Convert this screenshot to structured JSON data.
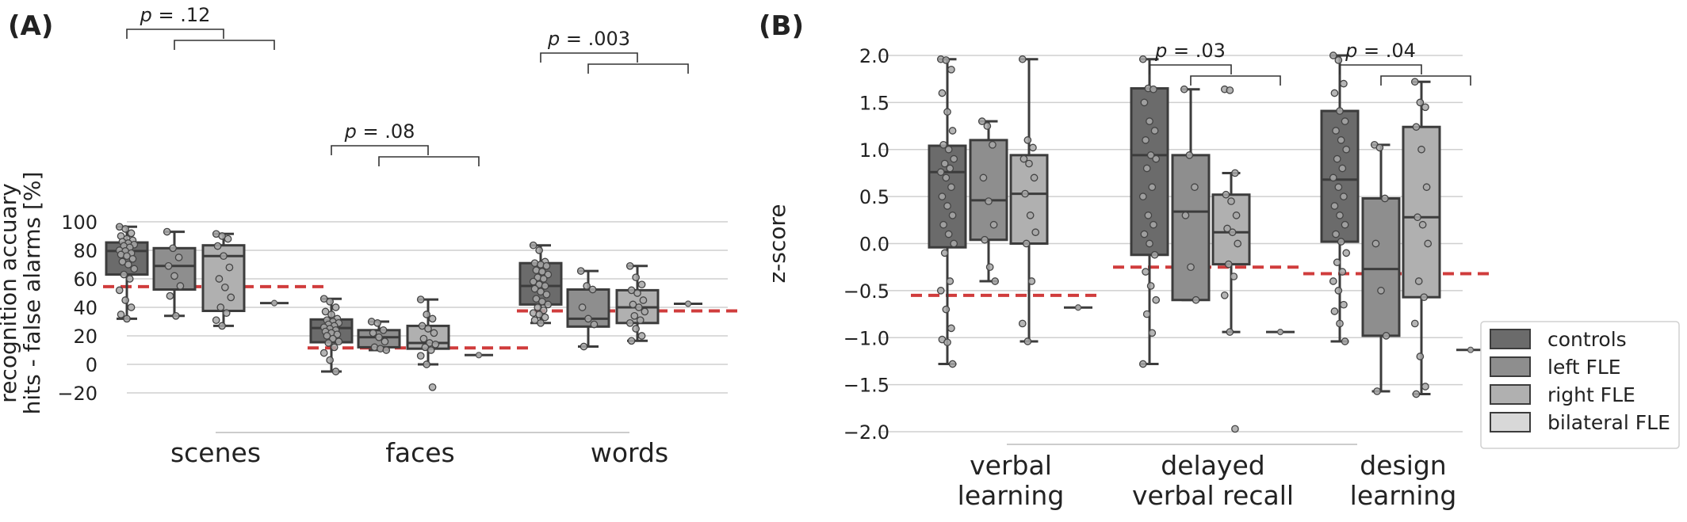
{
  "chart_data": [
    {
      "panel": "(A)",
      "type": "box",
      "ylabel_lines": [
        "recognition accuary",
        "hits - false alarms [%]"
      ],
      "ylim": [
        -22,
        103
      ],
      "yticks": [
        100,
        80,
        60,
        40,
        20,
        0,
        -20
      ],
      "ytick_labels": [
        "100",
        "80",
        "60",
        "40",
        "20",
        "0",
        "−20"
      ],
      "grid": true,
      "categories": [
        "scenes",
        "faces",
        "words"
      ],
      "series": [
        {
          "name": "controls",
          "color": "#6b6b6b",
          "boxes": [
            {
              "q1": 63,
              "median": 79.5,
              "q3": 85.5,
              "whisker_low": 32,
              "whisker_high": 96.5,
              "points": [
                96.5,
                95,
                92,
                90,
                88,
                87,
                86,
                85,
                84,
                83,
                82,
                80,
                79.5,
                78,
                77,
                76,
                74,
                72,
                70,
                67,
                63,
                60,
                52,
                45,
                40,
                35,
                32
              ]
            },
            {
              "q1": 15.5,
              "median": 25.5,
              "q3": 31.5,
              "whisker_low": -5,
              "whisker_high": 46,
              "points": [
                46,
                44,
                40,
                37,
                35,
                32,
                31,
                30,
                29,
                28,
                27,
                26,
                25,
                24,
                23,
                22,
                21,
                20,
                18,
                16,
                15,
                12,
                8,
                3,
                -5
              ]
            },
            {
              "q1": 42,
              "median": 55,
              "q3": 71,
              "whisker_low": 29,
              "whisker_high": 83.5,
              "points": [
                83.5,
                80,
                72,
                71,
                70,
                69,
                66,
                65,
                63,
                61,
                60,
                58,
                56,
                55,
                53,
                51,
                49,
                46,
                44,
                42,
                40,
                38,
                36,
                35,
                33,
                31,
                29
              ]
            }
          ]
        },
        {
          "name": "left FLE",
          "color": "#8e8e8e",
          "boxes": [
            {
              "q1": 52.5,
              "median": 69,
              "q3": 81.5,
              "whisker_low": 34,
              "whisker_high": 93,
              "points": [
                93,
                81.5,
                75,
                69,
                62,
                55,
                48,
                34
              ]
            },
            {
              "q1": 12,
              "median": 19,
              "q3": 24,
              "whisker_low": 10,
              "whisker_high": 30,
              "points": [
                30,
                29,
                24,
                22,
                19,
                16,
                12,
                11,
                10
              ]
            },
            {
              "q1": 26.5,
              "median": 32,
              "q3": 52.5,
              "whisker_low": 12.5,
              "whisker_high": 65.5,
              "points": [
                65.5,
                55,
                52.5,
                40,
                32,
                28,
                12.5
              ]
            }
          ]
        },
        {
          "name": "right FLE",
          "color": "#b0b0b0",
          "boxes": [
            {
              "q1": 37.5,
              "median": 76,
              "q3": 83.5,
              "whisker_low": 27,
              "whisker_high": 91.5,
              "points": [
                91.5,
                90,
                88,
                83,
                76,
                68,
                60,
                54,
                47,
                40,
                36,
                31,
                27
              ]
            },
            {
              "q1": 11,
              "median": 15,
              "q3": 27,
              "whisker_low": 0,
              "whisker_high": 45.5,
              "points": [
                45.5,
                35,
                32,
                27,
                25,
                22,
                18,
                15,
                14,
                12,
                10,
                6,
                0,
                -16
              ]
            },
            {
              "q1": 29,
              "median": 40,
              "q3": 52,
              "whisker_low": 16.5,
              "whisker_high": 69,
              "points": [
                69,
                61,
                56,
                52,
                50,
                45,
                42,
                40,
                37,
                34,
                31,
                29,
                25,
                20,
                16.5
              ]
            }
          ]
        },
        {
          "name": "bilateral FLE",
          "color": "#d8d8d8",
          "boxes": [
            {
              "value": 43
            },
            {
              "value": 6.5
            },
            {
              "value": 42.5
            }
          ]
        }
      ],
      "reference_lines": [
        {
          "category": "scenes",
          "y": 54.5
        },
        {
          "category": "faces",
          "y": 11.5
        },
        {
          "category": "words",
          "y": 37.5
        }
      ],
      "annotations": [
        {
          "category": "scenes",
          "text": "p = .12"
        },
        {
          "category": "faces",
          "text": "p = .08"
        },
        {
          "category": "words",
          "text": "p = .003"
        }
      ]
    },
    {
      "panel": "(B)",
      "type": "box",
      "ylabel_lines": [
        "z-score"
      ],
      "ylim": [
        -2.1,
        2.1
      ],
      "yticks": [
        2.0,
        1.5,
        1.0,
        0.5,
        0.0,
        -0.5,
        -1.0,
        -1.5,
        -2.0
      ],
      "ytick_labels": [
        "2.0",
        "1.5",
        "1.0",
        "0.5",
        "0.0",
        "−0.5",
        "−1.0",
        "−1.5",
        "−2.0"
      ],
      "grid": true,
      "categories": [
        [
          "verbal",
          "learning"
        ],
        [
          "delayed",
          "verbal recall"
        ],
        [
          "design",
          "learning"
        ]
      ],
      "series": [
        {
          "name": "controls",
          "color": "#6b6b6b",
          "boxes": [
            {
              "q1": -0.04,
              "median": 0.76,
              "q3": 1.04,
              "whisker_low": -1.28,
              "whisker_high": 1.96,
              "points": [
                1.96,
                1.95,
                1.85,
                1.6,
                1.4,
                1.2,
                1.05,
                1.0,
                0.9,
                0.85,
                0.8,
                0.76,
                0.7,
                0.6,
                0.5,
                0.4,
                0.3,
                0.2,
                0.1,
                0.0,
                -0.1,
                -0.4,
                -0.5,
                -0.7,
                -0.9,
                -1.02,
                -1.05,
                -1.28
              ]
            },
            {
              "q1": -0.12,
              "median": 0.94,
              "q3": 1.65,
              "whisker_low": -1.28,
              "whisker_high": 1.96,
              "points": [
                1.96,
                1.65,
                1.64,
                1.5,
                1.3,
                1.2,
                1.1,
                0.94,
                0.9,
                0.8,
                0.6,
                0.5,
                0.3,
                0.2,
                0.1,
                0.0,
                -0.12,
                -0.3,
                -0.45,
                -0.6,
                -0.75,
                -0.95,
                -1.28
              ]
            },
            {
              "q1": 0.02,
              "median": 0.68,
              "q3": 1.41,
              "whisker_low": -1.04,
              "whisker_high": 2.0,
              "points": [
                2.0,
                1.95,
                1.7,
                1.6,
                1.41,
                1.3,
                1.2,
                1.1,
                1.0,
                0.9,
                0.8,
                0.7,
                0.6,
                0.5,
                0.4,
                0.3,
                0.2,
                0.1,
                0.02,
                -0.1,
                -0.2,
                -0.3,
                -0.4,
                -0.5,
                -0.65,
                -0.72,
                -0.85,
                -1.04
              ]
            }
          ]
        },
        {
          "name": "left FLE",
          "color": "#8e8e8e",
          "boxes": [
            {
              "q1": 0.04,
              "median": 0.46,
              "q3": 1.1,
              "whisker_low": -0.4,
              "whisker_high": 1.3,
              "points": [
                1.3,
                1.25,
                1.05,
                0.7,
                0.45,
                0.2,
                0.04,
                -0.25,
                -0.4
              ]
            },
            {
              "q1": -0.6,
              "median": 0.34,
              "q3": 0.94,
              "whisker_low": -0.6,
              "whisker_high": 1.64,
              "points": [
                1.64,
                0.94,
                0.6,
                0.3,
                -0.25,
                -0.6
              ]
            },
            {
              "q1": -0.98,
              "median": -0.27,
              "q3": 0.48,
              "whisker_low": -1.57,
              "whisker_high": 1.05,
              "points": [
                1.05,
                1.02,
                0.48,
                0.0,
                -0.5,
                -0.98,
                -1.57
              ]
            }
          ]
        },
        {
          "name": "right FLE",
          "color": "#b0b0b0",
          "boxes": [
            {
              "q1": 0.0,
              "median": 0.53,
              "q3": 0.94,
              "whisker_low": -1.04,
              "whisker_high": 1.96,
              "points": [
                1.96,
                1.1,
                1.02,
                0.9,
                0.85,
                0.7,
                0.53,
                0.3,
                0.12,
                0.0,
                -0.4,
                -0.85,
                -1.04
              ]
            },
            {
              "q1": -0.22,
              "median": 0.12,
              "q3": 0.52,
              "whisker_low": -0.94,
              "whisker_high": 0.75,
              "points": [
                1.64,
                1.63,
                0.75,
                0.52,
                0.45,
                0.3,
                0.16,
                0.12,
                0.0,
                -0.22,
                -0.35,
                -0.55,
                -0.94,
                -1.97
              ]
            },
            {
              "q1": -0.57,
              "median": 0.28,
              "q3": 1.24,
              "whisker_low": -1.6,
              "whisker_high": 1.72,
              "points": [
                1.72,
                1.5,
                1.45,
                1.24,
                1.0,
                0.6,
                0.28,
                0.2,
                0.0,
                -0.4,
                -0.57,
                -0.85,
                -1.2,
                -1.52,
                -1.6
              ]
            }
          ]
        },
        {
          "name": "bilateral FLE",
          "color": "#d8d8d8",
          "boxes": [
            {
              "value": -0.68
            },
            {
              "value": -0.94
            },
            {
              "value": -1.13
            }
          ]
        }
      ],
      "reference_lines": [
        {
          "category": "verbal learning",
          "y": -0.55
        },
        {
          "category": "delayed verbal recall",
          "y": -0.25
        },
        {
          "category": "design learning",
          "y": -0.32
        }
      ],
      "annotations": [
        {
          "category": "delayed verbal recall",
          "text": "p = .03"
        },
        {
          "category": "design learning",
          "text": "p = .04"
        }
      ]
    }
  ],
  "legend": {
    "position": "right",
    "entries": [
      {
        "label": "controls",
        "color": "#6b6b6b"
      },
      {
        "label": "left FLE",
        "color": "#8e8e8e"
      },
      {
        "label": "right FLE",
        "color": "#b0b0b0"
      },
      {
        "label": "bilateral FLE",
        "color": "#d8d8d8"
      }
    ]
  },
  "colors": {
    "box_edge": "#3c3c3c",
    "grid": "#cfcfcf",
    "reference": "#d03c3c",
    "point_fill": "#a8a8a8"
  }
}
